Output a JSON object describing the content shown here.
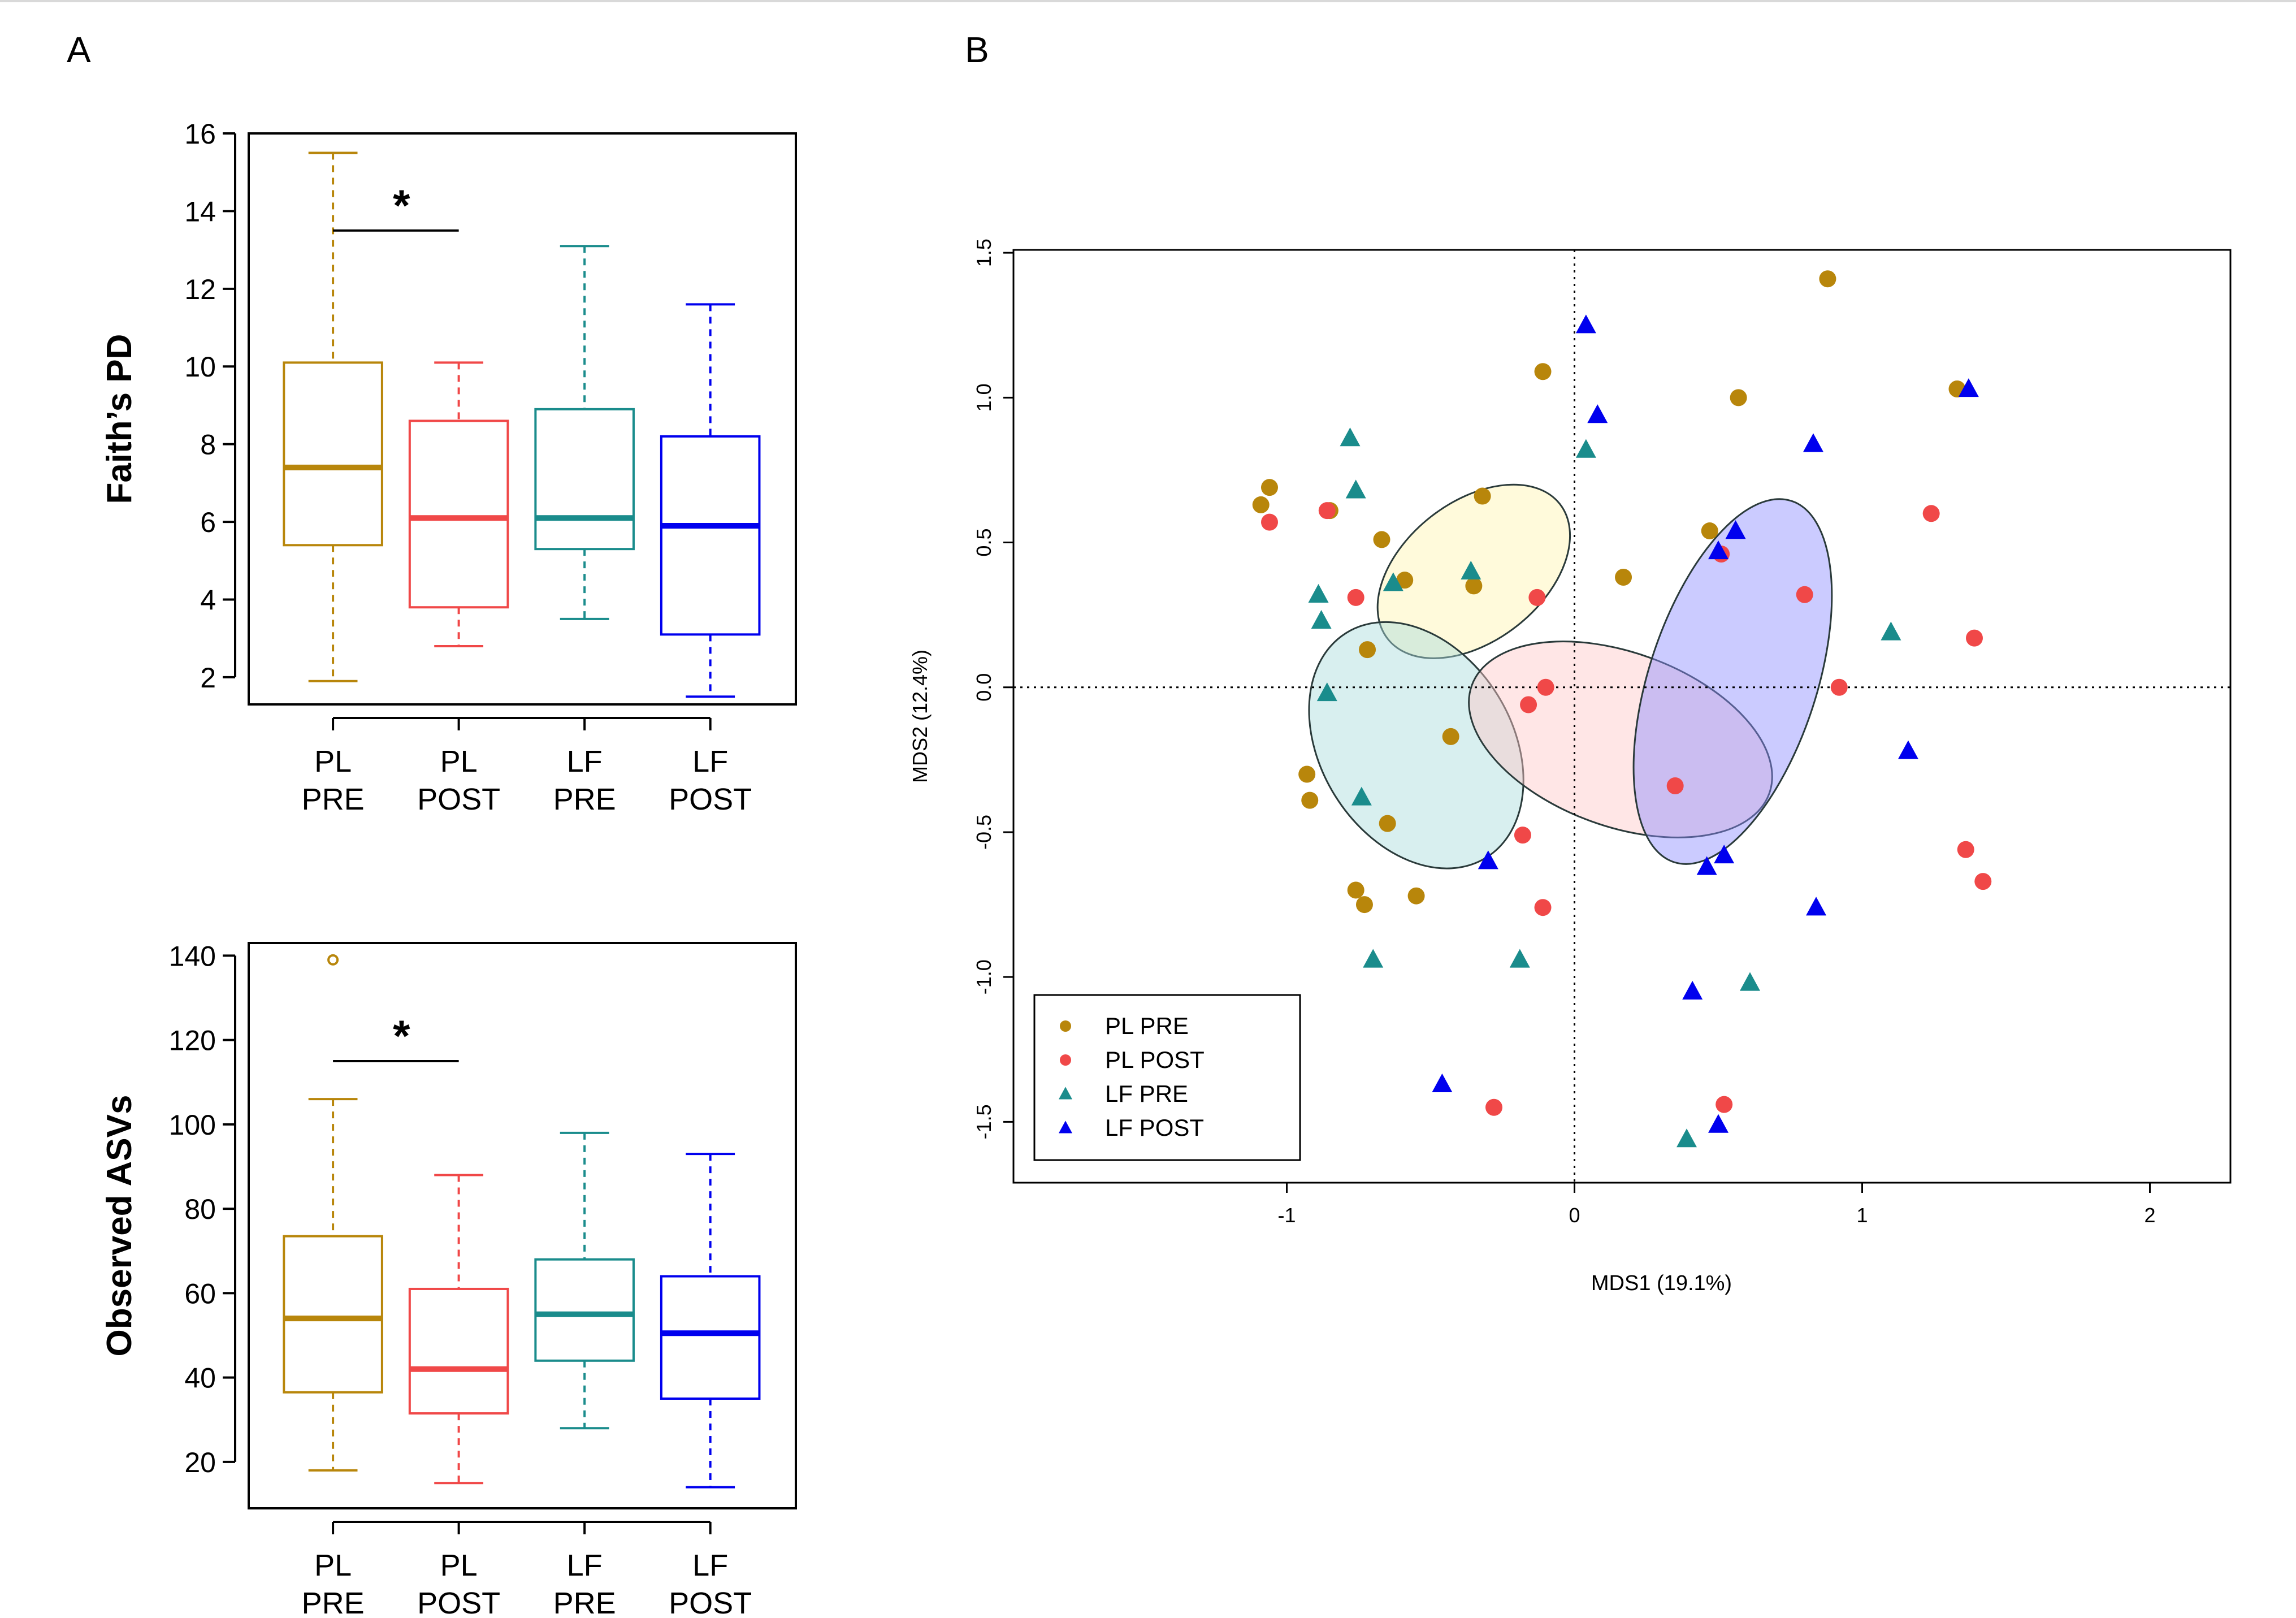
{
  "figure": {
    "panel_a_label": "A",
    "panel_b_label": "B"
  },
  "colors": {
    "pl_pre": "#B8860B",
    "pl_post": "#F04848",
    "lf_pre": "#1A8C8C",
    "lf_post": "#0000EE",
    "ellipse_pl_pre": "#FFF5B0",
    "ellipse_pl_post": "#FFC8C8",
    "ellipse_lf_pre": "#A8DCDC",
    "ellipse_lf_post": "#8C8CFF"
  },
  "chart_data": [
    {
      "id": "faith-pd",
      "type": "boxplot",
      "ylabel": "Faith’s PD",
      "ylim": [
        1.3,
        16.0
      ],
      "yticks": [
        2,
        4,
        6,
        8,
        10,
        12,
        14,
        16
      ],
      "categories": [
        {
          "line1": "PL",
          "line2": "PRE"
        },
        {
          "line1": "PL",
          "line2": "POST"
        },
        {
          "line1": "LF",
          "line2": "PRE"
        },
        {
          "line1": "LF",
          "line2": "POST"
        }
      ],
      "series": [
        {
          "name": "PL PRE",
          "color_key": "pl_pre",
          "whisker_low": 1.9,
          "q1": 5.4,
          "median": 7.4,
          "q3": 10.1,
          "whisker_high": 15.5,
          "outliers": []
        },
        {
          "name": "PL POST",
          "color_key": "pl_post",
          "whisker_low": 2.8,
          "q1": 3.8,
          "median": 6.1,
          "q3": 8.6,
          "whisker_high": 10.1,
          "outliers": []
        },
        {
          "name": "LF PRE",
          "color_key": "lf_pre",
          "whisker_low": 3.5,
          "q1": 5.3,
          "median": 6.1,
          "q3": 8.9,
          "whisker_high": 13.1,
          "outliers": []
        },
        {
          "name": "LF POST",
          "color_key": "lf_post",
          "whisker_low": 1.5,
          "q1": 3.1,
          "median": 5.9,
          "q3": 8.2,
          "whisker_high": 11.6,
          "outliers": []
        }
      ],
      "significance": {
        "from": 0,
        "to": 1,
        "y": 13.5,
        "label": "*"
      }
    },
    {
      "id": "observed-asvs",
      "type": "boxplot",
      "ylabel": "Observed ASVs",
      "ylim": [
        9,
        143
      ],
      "yticks": [
        20,
        40,
        60,
        80,
        100,
        120,
        140
      ],
      "categories": [
        {
          "line1": "PL",
          "line2": "PRE"
        },
        {
          "line1": "PL",
          "line2": "POST"
        },
        {
          "line1": "LF",
          "line2": "PRE"
        },
        {
          "line1": "LF",
          "line2": "POST"
        }
      ],
      "series": [
        {
          "name": "PL PRE",
          "color_key": "pl_pre",
          "whisker_low": 18,
          "q1": 36.5,
          "median": 54,
          "q3": 73.5,
          "whisker_high": 106,
          "outliers": [
            139
          ]
        },
        {
          "name": "PL POST",
          "color_key": "pl_post",
          "whisker_low": 15,
          "q1": 31.5,
          "median": 42,
          "q3": 61,
          "whisker_high": 88,
          "outliers": []
        },
        {
          "name": "LF PRE",
          "color_key": "lf_pre",
          "whisker_low": 28,
          "q1": 44,
          "median": 55,
          "q3": 68,
          "whisker_high": 98,
          "outliers": []
        },
        {
          "name": "LF POST",
          "color_key": "lf_post",
          "whisker_low": 14,
          "q1": 35,
          "median": 50.5,
          "q3": 64,
          "whisker_high": 93,
          "outliers": []
        }
      ],
      "significance": {
        "from": 0,
        "to": 1,
        "y": 115,
        "label": "*"
      }
    },
    {
      "id": "mds",
      "type": "scatter",
      "xlabel": "MDS1 (19.1%)",
      "ylabel": "MDS2 (12.4%)",
      "xlim": [
        -1.95,
        2.28
      ],
      "ylim": [
        -1.71,
        1.51
      ],
      "xticks": [
        -1,
        0,
        1,
        2
      ],
      "yticks": [
        -1.5,
        -1.0,
        -0.5,
        0.0,
        0.5,
        1.0,
        1.5
      ],
      "ytick_labels": [
        "-1.5",
        "-1.0",
        "-0.5",
        "0.0",
        "0.5",
        "1.0",
        "1.5"
      ],
      "legend": {
        "position": "bottom-left",
        "entries": [
          "PL PRE",
          "PL POST",
          "LF PRE",
          "LF POST"
        ]
      },
      "series": [
        {
          "name": "PL PRE",
          "marker": "circle",
          "color_key": "pl_pre",
          "x": [
            -1.09,
            -1.06,
            -0.93,
            -0.92,
            -0.85,
            -0.76,
            -0.73,
            -0.72,
            -0.67,
            -0.65,
            -0.59,
            -0.55,
            -0.43,
            -0.35,
            -0.32,
            -0.11,
            0.17,
            0.47,
            0.57,
            0.88,
            1.33
          ],
          "y": [
            0.63,
            0.69,
            -0.3,
            -0.39,
            0.61,
            -0.7,
            -0.75,
            0.13,
            0.51,
            -0.47,
            0.37,
            -0.72,
            -0.17,
            0.35,
            0.66,
            1.09,
            0.38,
            0.54,
            1.0,
            1.41,
            1.03
          ]
        },
        {
          "name": "PL POST",
          "marker": "circle",
          "color_key": "pl_post",
          "x": [
            -1.06,
            -0.86,
            -0.76,
            -0.28,
            -0.18,
            -0.16,
            -0.13,
            -0.11,
            -0.1,
            0.35,
            0.51,
            0.52,
            0.8,
            0.92,
            1.24,
            1.36,
            1.39,
            1.42
          ],
          "y": [
            0.57,
            0.61,
            0.31,
            -1.45,
            -0.51,
            -0.06,
            0.31,
            -0.76,
            0.0,
            -0.34,
            0.46,
            -1.44,
            0.32,
            0.0,
            0.6,
            -0.56,
            0.17,
            -0.67
          ]
        },
        {
          "name": "LF PRE",
          "marker": "triangle",
          "color_key": "lf_pre",
          "x": [
            -0.88,
            -0.89,
            -0.86,
            -0.78,
            -0.76,
            -0.74,
            -0.7,
            -0.63,
            -0.36,
            -0.19,
            0.04,
            0.39,
            0.61,
            1.1
          ],
          "y": [
            0.23,
            0.32,
            -0.02,
            0.86,
            0.68,
            -0.38,
            -0.94,
            0.36,
            0.4,
            -0.94,
            0.82,
            -1.56,
            -1.02,
            0.19
          ]
        },
        {
          "name": "LF POST",
          "marker": "triangle",
          "color_key": "lf_post",
          "x": [
            -0.46,
            -0.3,
            0.04,
            0.08,
            0.41,
            0.46,
            0.5,
            0.5,
            0.52,
            0.56,
            0.83,
            0.84,
            1.16,
            1.37
          ],
          "y": [
            -1.37,
            -0.6,
            1.25,
            0.94,
            -1.05,
            -0.62,
            -1.51,
            0.47,
            -0.58,
            0.54,
            0.84,
            -0.76,
            -0.22,
            1.03
          ]
        }
      ],
      "ellipses": [
        {
          "name": "PL PRE",
          "color_key": "ellipse_pl_pre",
          "cx": -0.35,
          "cy": 0.4,
          "rx": 0.38,
          "ry": 0.24,
          "angle_deg": 38
        },
        {
          "name": "LF PRE",
          "color_key": "ellipse_lf_pre",
          "cx": -0.55,
          "cy": -0.2,
          "rx": 0.46,
          "ry": 0.33,
          "angle_deg": -58
        },
        {
          "name": "PL POST",
          "color_key": "ellipse_pl_post",
          "cx": 0.16,
          "cy": -0.18,
          "rx": 0.55,
          "ry": 0.3,
          "angle_deg": -20
        },
        {
          "name": "LF POST",
          "color_key": "ellipse_lf_post",
          "cx": 0.55,
          "cy": 0.02,
          "rx": 0.66,
          "ry": 0.29,
          "angle_deg": 72
        }
      ]
    }
  ]
}
